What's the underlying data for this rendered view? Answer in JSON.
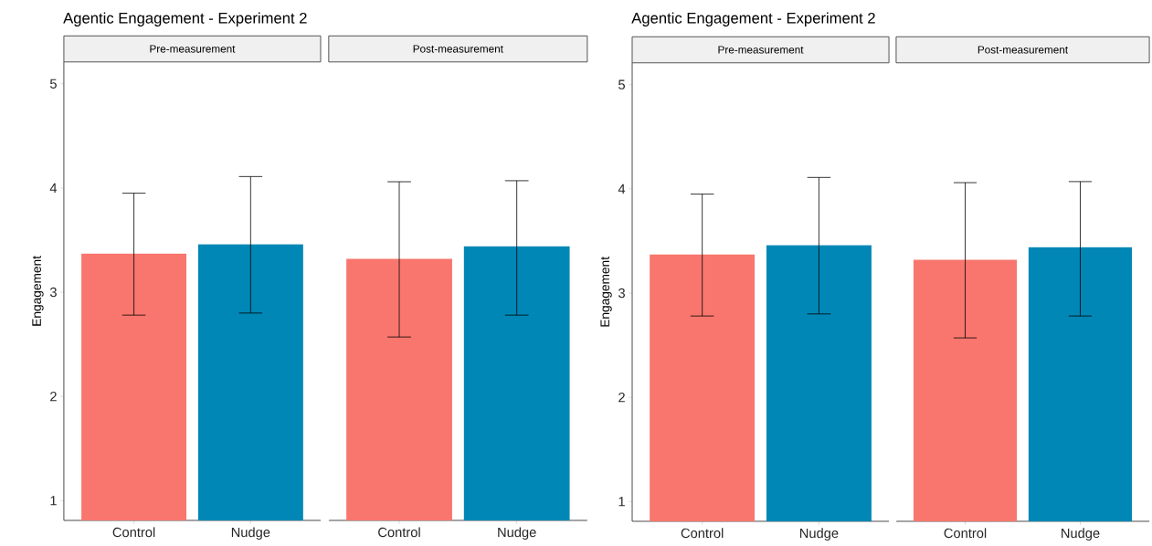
{
  "chart_data": [
    {
      "type": "bar",
      "title": "Agentic Engagement - Experiment 2",
      "subtitle": "Pre-measurement",
      "ylabel": "Engagement",
      "categories": [
        "Control",
        "Nudge"
      ],
      "values": [
        3.37,
        3.46
      ],
      "colors": [
        "#f8766d",
        "#0087b5"
      ],
      "errors": [
        [
          2.78,
          3.95
        ],
        [
          2.8,
          4.11
        ]
      ],
      "ylim": [
        0.81,
        5.21
      ],
      "yticks": [
        1,
        2,
        3,
        4,
        5
      ]
    },
    {
      "type": "bar",
      "subtitle": "Post-measurement",
      "categories": [
        "Control",
        "Nudge"
      ],
      "values": [
        3.32,
        3.44
      ],
      "colors": [
        "#f8766d",
        "#0087b5"
      ],
      "errors": [
        [
          2.57,
          4.06
        ],
        [
          2.78,
          4.07
        ]
      ],
      "ylim": [
        0.81,
        5.21
      ],
      "yticks": [
        1,
        2,
        3,
        4,
        5
      ],
      "tick_labels": "x"
    },
    {
      "type": "bar",
      "title": "Agentic Engagement - Experiment 2",
      "subtitle": "Pre-measurement",
      "ylabel": "Engagement",
      "categories": [
        "Control",
        "Nudge"
      ],
      "values": [
        3.37,
        3.46
      ],
      "colors": [
        "#f8766d",
        "#0087b5"
      ],
      "errors": [
        [
          2.78,
          3.95
        ],
        [
          2.8,
          4.11
        ]
      ],
      "ylim": [
        0.81,
        5.21
      ],
      "yticks": [
        1,
        2,
        3,
        4,
        5
      ]
    },
    {
      "type": "bar",
      "subtitle": "Post-measurement",
      "categories": [
        "Control",
        "Nudge"
      ],
      "values": [
        3.32,
        3.44
      ],
      "colors": [
        "#f8766d",
        "#0087b5"
      ],
      "errors": [
        [
          2.57,
          4.06
        ],
        [
          2.78,
          4.07
        ]
      ],
      "ylim": [
        0.81,
        5.21
      ],
      "yticks": [
        1,
        2,
        3,
        4,
        5
      ],
      "tick_labels": "x"
    }
  ]
}
